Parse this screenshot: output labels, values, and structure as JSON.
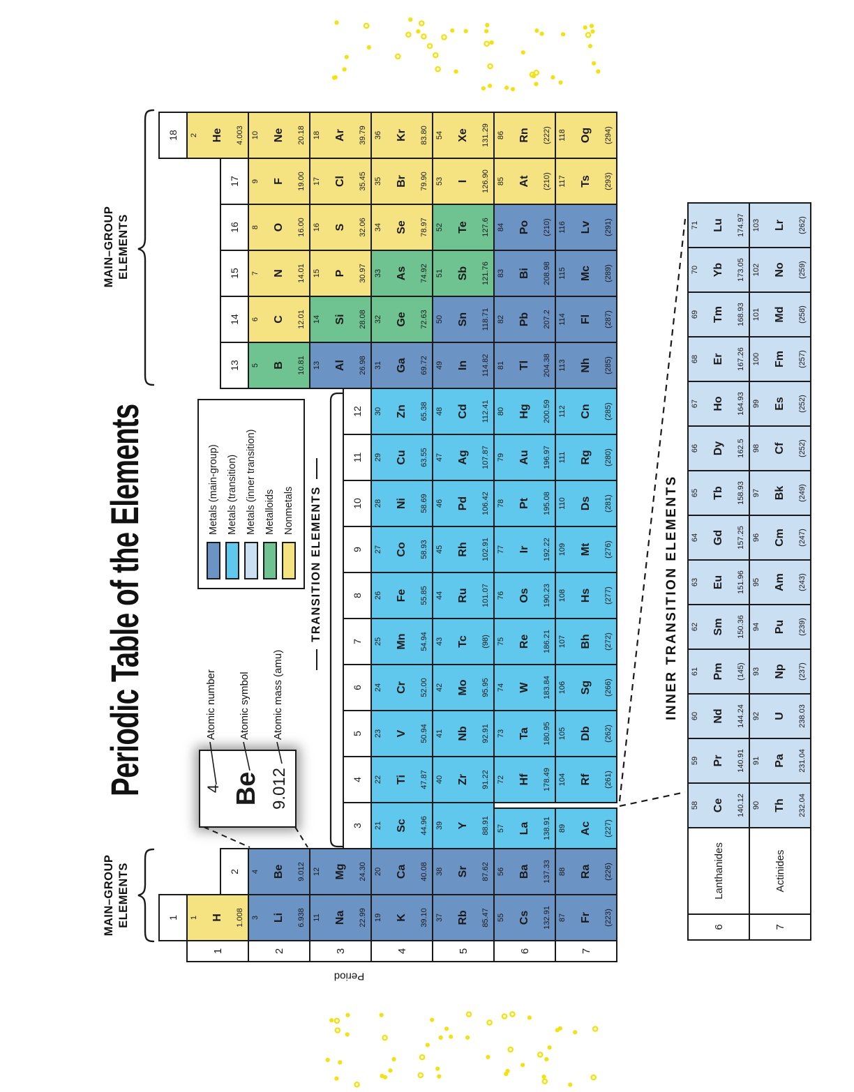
{
  "title": "Periodic Table of the Elements",
  "labels": {
    "main_group_line1": "MAIN–GROUP",
    "main_group_line2": "ELEMENTS",
    "transition": "TRANSITION ELEMENTS",
    "inner_transition": "INNER TRANSITION ELEMENTS",
    "period": "Period",
    "lanthanides": "Lanthanides",
    "actinides": "Actinides"
  },
  "legend": {
    "items": [
      {
        "label": "Metals (main-group)",
        "key": "mg"
      },
      {
        "label": "Metals (transition)",
        "key": "tm"
      },
      {
        "label": "Metals (inner transition)",
        "key": "it"
      },
      {
        "label": "Metalloids",
        "key": "md"
      },
      {
        "label": "Nonmetals",
        "key": "nm"
      }
    ]
  },
  "example": {
    "number": "4",
    "symbol": "Be",
    "mass": "9.012",
    "callouts": [
      "Atomic number",
      "Atomic symbol",
      "Atomic mass (amu)"
    ]
  },
  "groups": [
    "1",
    "2",
    "3",
    "4",
    "5",
    "6",
    "7",
    "8",
    "9",
    "10",
    "11",
    "12",
    "13",
    "14",
    "15",
    "16",
    "17",
    "18"
  ],
  "periods": [
    "1",
    "2",
    "3",
    "4",
    "5",
    "6",
    "7"
  ],
  "fblock_periods": [
    "6",
    "7"
  ],
  "colors": {
    "mg": "#6b93c4",
    "tm": "#5fc8ec",
    "it": "#cbdff2",
    "md": "#6ec391",
    "nm": "#f5e382",
    "confetti": "#f2e30d",
    "line": "#1a1a1a"
  },
  "elements": [
    {
      "n": 1,
      "s": "H",
      "m": "1.008",
      "g": 1,
      "p": 1,
      "c": "nm"
    },
    {
      "n": 2,
      "s": "He",
      "m": "4.003",
      "g": 18,
      "p": 1,
      "c": "nm"
    },
    {
      "n": 3,
      "s": "Li",
      "m": "6.938",
      "g": 1,
      "p": 2,
      "c": "mg"
    },
    {
      "n": 4,
      "s": "Be",
      "m": "9.012",
      "g": 2,
      "p": 2,
      "c": "mg"
    },
    {
      "n": 5,
      "s": "B",
      "m": "10.81",
      "g": 13,
      "p": 2,
      "c": "md"
    },
    {
      "n": 6,
      "s": "C",
      "m": "12.01",
      "g": 14,
      "p": 2,
      "c": "nm"
    },
    {
      "n": 7,
      "s": "N",
      "m": "14.01",
      "g": 15,
      "p": 2,
      "c": "nm"
    },
    {
      "n": 8,
      "s": "O",
      "m": "16.00",
      "g": 16,
      "p": 2,
      "c": "nm"
    },
    {
      "n": 9,
      "s": "F",
      "m": "19.00",
      "g": 17,
      "p": 2,
      "c": "nm"
    },
    {
      "n": 10,
      "s": "Ne",
      "m": "20.18",
      "g": 18,
      "p": 2,
      "c": "nm"
    },
    {
      "n": 11,
      "s": "Na",
      "m": "22.99",
      "g": 1,
      "p": 3,
      "c": "mg"
    },
    {
      "n": 12,
      "s": "Mg",
      "m": "24.30",
      "g": 2,
      "p": 3,
      "c": "mg"
    },
    {
      "n": 13,
      "s": "Al",
      "m": "26.98",
      "g": 13,
      "p": 3,
      "c": "mg"
    },
    {
      "n": 14,
      "s": "Si",
      "m": "28.08",
      "g": 14,
      "p": 3,
      "c": "md"
    },
    {
      "n": 15,
      "s": "P",
      "m": "30.97",
      "g": 15,
      "p": 3,
      "c": "nm"
    },
    {
      "n": 16,
      "s": "S",
      "m": "32.06",
      "g": 16,
      "p": 3,
      "c": "nm"
    },
    {
      "n": 17,
      "s": "Cl",
      "m": "35.45",
      "g": 17,
      "p": 3,
      "c": "nm"
    },
    {
      "n": 18,
      "s": "Ar",
      "m": "39.79",
      "g": 18,
      "p": 3,
      "c": "nm"
    },
    {
      "n": 19,
      "s": "K",
      "m": "39.10",
      "g": 1,
      "p": 4,
      "c": "mg"
    },
    {
      "n": 20,
      "s": "Ca",
      "m": "40.08",
      "g": 2,
      "p": 4,
      "c": "mg"
    },
    {
      "n": 21,
      "s": "Sc",
      "m": "44.96",
      "g": 3,
      "p": 4,
      "c": "tm"
    },
    {
      "n": 22,
      "s": "Ti",
      "m": "47.87",
      "g": 4,
      "p": 4,
      "c": "tm"
    },
    {
      "n": 23,
      "s": "V",
      "m": "50.94",
      "g": 5,
      "p": 4,
      "c": "tm"
    },
    {
      "n": 24,
      "s": "Cr",
      "m": "52.00",
      "g": 6,
      "p": 4,
      "c": "tm"
    },
    {
      "n": 25,
      "s": "Mn",
      "m": "54.94",
      "g": 7,
      "p": 4,
      "c": "tm"
    },
    {
      "n": 26,
      "s": "Fe",
      "m": "55.85",
      "g": 8,
      "p": 4,
      "c": "tm"
    },
    {
      "n": 27,
      "s": "Co",
      "m": "58.93",
      "g": 9,
      "p": 4,
      "c": "tm"
    },
    {
      "n": 28,
      "s": "Ni",
      "m": "58.69",
      "g": 10,
      "p": 4,
      "c": "tm"
    },
    {
      "n": 29,
      "s": "Cu",
      "m": "63.55",
      "g": 11,
      "p": 4,
      "c": "tm"
    },
    {
      "n": 30,
      "s": "Zn",
      "m": "65.38",
      "g": 12,
      "p": 4,
      "c": "tm"
    },
    {
      "n": 31,
      "s": "Ga",
      "m": "69.72",
      "g": 13,
      "p": 4,
      "c": "mg"
    },
    {
      "n": 32,
      "s": "Ge",
      "m": "72.63",
      "g": 14,
      "p": 4,
      "c": "md"
    },
    {
      "n": 33,
      "s": "As",
      "m": "74.92",
      "g": 15,
      "p": 4,
      "c": "md"
    },
    {
      "n": 34,
      "s": "Se",
      "m": "78.97",
      "g": 16,
      "p": 4,
      "c": "nm"
    },
    {
      "n": 35,
      "s": "Br",
      "m": "79.90",
      "g": 17,
      "p": 4,
      "c": "nm"
    },
    {
      "n": 36,
      "s": "Kr",
      "m": "83.80",
      "g": 18,
      "p": 4,
      "c": "nm"
    },
    {
      "n": 37,
      "s": "Rb",
      "m": "85.47",
      "g": 1,
      "p": 5,
      "c": "mg"
    },
    {
      "n": 38,
      "s": "Sr",
      "m": "87.62",
      "g": 2,
      "p": 5,
      "c": "mg"
    },
    {
      "n": 39,
      "s": "Y",
      "m": "88.91",
      "g": 3,
      "p": 5,
      "c": "tm"
    },
    {
      "n": 40,
      "s": "Zr",
      "m": "91.22",
      "g": 4,
      "p": 5,
      "c": "tm"
    },
    {
      "n": 41,
      "s": "Nb",
      "m": "92.91",
      "g": 5,
      "p": 5,
      "c": "tm"
    },
    {
      "n": 42,
      "s": "Mo",
      "m": "95.95",
      "g": 6,
      "p": 5,
      "c": "tm"
    },
    {
      "n": 43,
      "s": "Tc",
      "m": "(98)",
      "g": 7,
      "p": 5,
      "c": "tm"
    },
    {
      "n": 44,
      "s": "Ru",
      "m": "101.07",
      "g": 8,
      "p": 5,
      "c": "tm"
    },
    {
      "n": 45,
      "s": "Rh",
      "m": "102.91",
      "g": 9,
      "p": 5,
      "c": "tm"
    },
    {
      "n": 46,
      "s": "Pd",
      "m": "106.42",
      "g": 10,
      "p": 5,
      "c": "tm"
    },
    {
      "n": 47,
      "s": "Ag",
      "m": "107.87",
      "g": 11,
      "p": 5,
      "c": "tm"
    },
    {
      "n": 48,
      "s": "Cd",
      "m": "112.41",
      "g": 12,
      "p": 5,
      "c": "tm"
    },
    {
      "n": 49,
      "s": "In",
      "m": "114.82",
      "g": 13,
      "p": 5,
      "c": "mg"
    },
    {
      "n": 50,
      "s": "Sn",
      "m": "118.71",
      "g": 14,
      "p": 5,
      "c": "mg"
    },
    {
      "n": 51,
      "s": "Sb",
      "m": "121.76",
      "g": 15,
      "p": 5,
      "c": "md"
    },
    {
      "n": 52,
      "s": "Te",
      "m": "127.6",
      "g": 16,
      "p": 5,
      "c": "md"
    },
    {
      "n": 53,
      "s": "I",
      "m": "126.90",
      "g": 17,
      "p": 5,
      "c": "nm"
    },
    {
      "n": 54,
      "s": "Xe",
      "m": "131.29",
      "g": 18,
      "p": 5,
      "c": "nm"
    },
    {
      "n": 55,
      "s": "Cs",
      "m": "132.91",
      "g": 1,
      "p": 6,
      "c": "mg"
    },
    {
      "n": 56,
      "s": "Ba",
      "m": "137.33",
      "g": 2,
      "p": 6,
      "c": "mg"
    },
    {
      "n": 57,
      "s": "La",
      "m": "138.91",
      "g": 3,
      "p": 6,
      "c": "tm"
    },
    {
      "n": 72,
      "s": "Hf",
      "m": "178.49",
      "g": 4,
      "p": 6,
      "c": "tm"
    },
    {
      "n": 73,
      "s": "Ta",
      "m": "180.95",
      "g": 5,
      "p": 6,
      "c": "tm"
    },
    {
      "n": 74,
      "s": "W",
      "m": "183.84",
      "g": 6,
      "p": 6,
      "c": "tm"
    },
    {
      "n": 75,
      "s": "Re",
      "m": "186.21",
      "g": 7,
      "p": 6,
      "c": "tm"
    },
    {
      "n": 76,
      "s": "Os",
      "m": "190.23",
      "g": 8,
      "p": 6,
      "c": "tm"
    },
    {
      "n": 77,
      "s": "Ir",
      "m": "192.22",
      "g": 9,
      "p": 6,
      "c": "tm"
    },
    {
      "n": 78,
      "s": "Pt",
      "m": "195.08",
      "g": 10,
      "p": 6,
      "c": "tm"
    },
    {
      "n": 79,
      "s": "Au",
      "m": "196.97",
      "g": 11,
      "p": 6,
      "c": "tm"
    },
    {
      "n": 80,
      "s": "Hg",
      "m": "200.59",
      "g": 12,
      "p": 6,
      "c": "tm"
    },
    {
      "n": 81,
      "s": "Tl",
      "m": "204.38",
      "g": 13,
      "p": 6,
      "c": "mg"
    },
    {
      "n": 82,
      "s": "Pb",
      "m": "207.2",
      "g": 14,
      "p": 6,
      "c": "mg"
    },
    {
      "n": 83,
      "s": "Bi",
      "m": "208.98",
      "g": 15,
      "p": 6,
      "c": "mg"
    },
    {
      "n": 84,
      "s": "Po",
      "m": "(210)",
      "g": 16,
      "p": 6,
      "c": "mg"
    },
    {
      "n": 85,
      "s": "At",
      "m": "(210)",
      "g": 17,
      "p": 6,
      "c": "nm"
    },
    {
      "n": 86,
      "s": "Rn",
      "m": "(222)",
      "g": 18,
      "p": 6,
      "c": "nm"
    },
    {
      "n": 87,
      "s": "Fr",
      "m": "(223)",
      "g": 1,
      "p": 7,
      "c": "mg"
    },
    {
      "n": 88,
      "s": "Ra",
      "m": "(226)",
      "g": 2,
      "p": 7,
      "c": "mg"
    },
    {
      "n": 89,
      "s": "Ac",
      "m": "(227)",
      "g": 3,
      "p": 7,
      "c": "tm"
    },
    {
      "n": 104,
      "s": "Rf",
      "m": "(261)",
      "g": 4,
      "p": 7,
      "c": "tm"
    },
    {
      "n": 105,
      "s": "Db",
      "m": "(262)",
      "g": 5,
      "p": 7,
      "c": "tm"
    },
    {
      "n": 106,
      "s": "Sg",
      "m": "(266)",
      "g": 6,
      "p": 7,
      "c": "tm"
    },
    {
      "n": 107,
      "s": "Bh",
      "m": "(272)",
      "g": 7,
      "p": 7,
      "c": "tm"
    },
    {
      "n": 108,
      "s": "Hs",
      "m": "(277)",
      "g": 8,
      "p": 7,
      "c": "tm"
    },
    {
      "n": 109,
      "s": "Mt",
      "m": "(276)",
      "g": 9,
      "p": 7,
      "c": "tm"
    },
    {
      "n": 110,
      "s": "Ds",
      "m": "(281)",
      "g": 10,
      "p": 7,
      "c": "tm"
    },
    {
      "n": 111,
      "s": "Rg",
      "m": "(280)",
      "g": 11,
      "p": 7,
      "c": "tm"
    },
    {
      "n": 112,
      "s": "Cn",
      "m": "(285)",
      "g": 12,
      "p": 7,
      "c": "tm"
    },
    {
      "n": 113,
      "s": "Nh",
      "m": "(285)",
      "g": 13,
      "p": 7,
      "c": "mg"
    },
    {
      "n": 114,
      "s": "Fl",
      "m": "(287)",
      "g": 14,
      "p": 7,
      "c": "mg"
    },
    {
      "n": 115,
      "s": "Mc",
      "m": "(289)",
      "g": 15,
      "p": 7,
      "c": "mg"
    },
    {
      "n": 116,
      "s": "Lv",
      "m": "(291)",
      "g": 16,
      "p": 7,
      "c": "mg"
    },
    {
      "n": 117,
      "s": "Ts",
      "m": "(293)",
      "g": 17,
      "p": 7,
      "c": "nm"
    },
    {
      "n": 118,
      "s": "Og",
      "m": "(294)",
      "g": 18,
      "p": 7,
      "c": "nm"
    }
  ],
  "lanthanides": [
    {
      "n": 58,
      "s": "Ce",
      "m": "140.12",
      "c": "it"
    },
    {
      "n": 59,
      "s": "Pr",
      "m": "140.91",
      "c": "it"
    },
    {
      "n": 60,
      "s": "Nd",
      "m": "144.24",
      "c": "it"
    },
    {
      "n": 61,
      "s": "Pm",
      "m": "(145)",
      "c": "it"
    },
    {
      "n": 62,
      "s": "Sm",
      "m": "150.36",
      "c": "it"
    },
    {
      "n": 63,
      "s": "Eu",
      "m": "151.96",
      "c": "it"
    },
    {
      "n": 64,
      "s": "Gd",
      "m": "157.25",
      "c": "it"
    },
    {
      "n": 65,
      "s": "Tb",
      "m": "158.93",
      "c": "it"
    },
    {
      "n": 66,
      "s": "Dy",
      "m": "162.5",
      "c": "it"
    },
    {
      "n": 67,
      "s": "Ho",
      "m": "164.93",
      "c": "it"
    },
    {
      "n": 68,
      "s": "Er",
      "m": "167.26",
      "c": "it"
    },
    {
      "n": 69,
      "s": "Tm",
      "m": "168.93",
      "c": "it"
    },
    {
      "n": 70,
      "s": "Yb",
      "m": "173.05",
      "c": "it"
    },
    {
      "n": 71,
      "s": "Lu",
      "m": "174.97",
      "c": "it"
    }
  ],
  "actinides": [
    {
      "n": 90,
      "s": "Th",
      "m": "232.04",
      "c": "it"
    },
    {
      "n": 91,
      "s": "Pa",
      "m": "231.04",
      "c": "it"
    },
    {
      "n": 92,
      "s": "U",
      "m": "238.03",
      "c": "it"
    },
    {
      "n": 93,
      "s": "Np",
      "m": "(237)",
      "c": "it"
    },
    {
      "n": 94,
      "s": "Pu",
      "m": "(239)",
      "c": "it"
    },
    {
      "n": 95,
      "s": "Am",
      "m": "(243)",
      "c": "it"
    },
    {
      "n": 96,
      "s": "Cm",
      "m": "(247)",
      "c": "it"
    },
    {
      "n": 97,
      "s": "Bk",
      "m": "(249)",
      "c": "it"
    },
    {
      "n": 98,
      "s": "Cf",
      "m": "(252)",
      "c": "it"
    },
    {
      "n": 99,
      "s": "Es",
      "m": "(252)",
      "c": "it"
    },
    {
      "n": 100,
      "s": "Fm",
      "m": "(257)",
      "c": "it"
    },
    {
      "n": 101,
      "s": "Md",
      "m": "(258)",
      "c": "it"
    },
    {
      "n": 102,
      "s": "No",
      "m": "(259)",
      "c": "it"
    },
    {
      "n": 103,
      "s": "Lr",
      "m": "(262)",
      "c": "it"
    }
  ]
}
